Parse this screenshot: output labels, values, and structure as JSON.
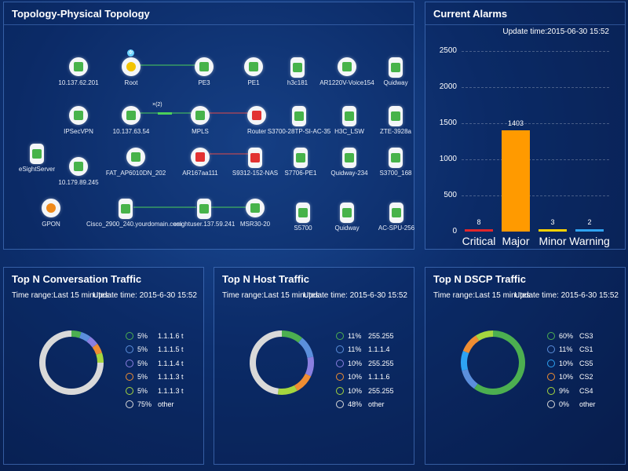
{
  "topology": {
    "title": "Topology-Physical Topology",
    "nodes": [
      {
        "label": "10.137.62.201",
        "type": "router-green"
      },
      {
        "label": "Root",
        "type": "root"
      },
      {
        "label": "PE3",
        "type": "router-green"
      },
      {
        "label": "PE1",
        "type": "router-green"
      },
      {
        "label": "h3c181",
        "type": "switch-green"
      },
      {
        "label": "AR1220V-Voice154",
        "type": "router-green"
      },
      {
        "label": "Quidway",
        "type": "switch-green"
      },
      {
        "label": "IPSecVPN",
        "type": "router-green"
      },
      {
        "label": "10.137.63.54",
        "type": "router-green"
      },
      {
        "label": "MPLS",
        "type": "router-green"
      },
      {
        "label": "Router",
        "type": "router-red"
      },
      {
        "label": "S3700-28TP-SI-AC-35",
        "type": "switch-green"
      },
      {
        "label": "H3C_LSW",
        "type": "switch-green"
      },
      {
        "label": "ZTE-3928a",
        "type": "switch-green"
      },
      {
        "label": "eSightServer",
        "type": "server-green"
      },
      {
        "label": "FAT_AP6010DN_202",
        "type": "ap"
      },
      {
        "label": "AR167aa111",
        "type": "router-red"
      },
      {
        "label": "S9312-152-NAS",
        "type": "switch-red"
      },
      {
        "label": "S7706-PE1",
        "type": "switch-green"
      },
      {
        "label": "Quidway-234",
        "type": "switch-green"
      },
      {
        "label": "S3700_168",
        "type": "switch-green"
      },
      {
        "label": "10.179.89.245",
        "type": "router-green"
      },
      {
        "label": "GPON",
        "type": "router-orange"
      },
      {
        "label": "Cisco_2900_240.yourdomain.com",
        "type": "switch-green"
      },
      {
        "label": "esightuser.137.59.241",
        "type": "switch-green"
      },
      {
        "label": "MSR30-20",
        "type": "router-green"
      },
      {
        "label": "S5700",
        "type": "switch-green"
      },
      {
        "label": "Quidway",
        "type": "switch-green"
      },
      {
        "label": "AC-SPU-256",
        "type": "switch-green"
      }
    ],
    "link_badge": "×(2)"
  },
  "alarms": {
    "title": "Current Alarms",
    "update_time": "Update time:2015-06-30 15:52",
    "chart_data": {
      "type": "bar",
      "categories": [
        "Critical",
        "Major",
        "Minor",
        "Warning"
      ],
      "values": [
        8,
        1403,
        3,
        2
      ],
      "colors": [
        "#e2262b",
        "#ff9a00",
        "#ffd200",
        "#2ea3f2"
      ],
      "ylim": [
        0,
        2500
      ],
      "yticks": [
        0,
        500,
        1000,
        1500,
        2000,
        2500
      ],
      "grid": true
    }
  },
  "conversation": {
    "title": "Top N Conversation Traffic",
    "time_range": "Time range:Last 15 minutes",
    "update_time": "Update time: 2015-6-30 15:52",
    "chart_data": {
      "type": "pie",
      "labels": [
        "1.1.1.6 t",
        "1.1.1.5 t",
        "1.1.1.4 t",
        "1.1.1.3 t",
        "1.1.1.3 t",
        "other"
      ],
      "values": [
        5,
        5,
        5,
        5,
        5,
        75
      ],
      "pct_labels": [
        "5%",
        "5%",
        "5%",
        "5%",
        "5%",
        "75%"
      ],
      "colors": [
        "#4caf50",
        "#5b8fdc",
        "#8a7fe0",
        "#ef8d32",
        "#a5d63f",
        "#d9d9d9"
      ]
    }
  },
  "host": {
    "title": "Top N Host Traffic",
    "time_range": "Time range:Last 15 minutes",
    "update_time": "Update time: 2015-6-30 15:52",
    "chart_data": {
      "type": "pie",
      "labels": [
        "255.255",
        "1.1.1.4",
        "255.255",
        "1.1.1.6",
        "255.255",
        "other"
      ],
      "values": [
        11,
        11,
        10,
        10,
        10,
        48
      ],
      "pct_labels": [
        "11%",
        "11%",
        "10%",
        "10%",
        "10%",
        "48%"
      ],
      "colors": [
        "#4caf50",
        "#5b8fdc",
        "#8a7fe0",
        "#ef8d32",
        "#a5d63f",
        "#d9d9d9"
      ]
    }
  },
  "dscp": {
    "title": "Top N DSCP Traffic",
    "time_range": "Time range:Last 15 minutes",
    "update_time": "Update time: 2015-6-30 15:52",
    "chart_data": {
      "type": "pie",
      "labels": [
        "CS3",
        "CS1",
        "CS5",
        "CS2",
        "CS4",
        "other"
      ],
      "values": [
        60,
        11,
        10,
        10,
        9,
        0
      ],
      "pct_labels": [
        "60%",
        "11%",
        "10%",
        "10%",
        "9%",
        "0%"
      ],
      "colors": [
        "#4caf50",
        "#5b8fdc",
        "#2ea3f2",
        "#ef8d32",
        "#a5d63f",
        "#d9d9d9"
      ]
    }
  }
}
